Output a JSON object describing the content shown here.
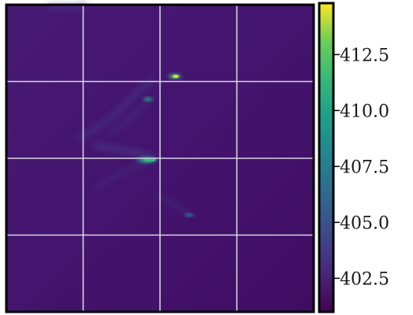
{
  "chart_data": {
    "type": "heatmap",
    "title": "",
    "xlabel": "",
    "ylabel": "",
    "grid": true,
    "grid_color": "#d9d2e6",
    "colormap": "viridis",
    "background_color": "#431068",
    "value_range": [
      401.0,
      414.8
    ],
    "colorbar": {
      "ticks": [
        412.5,
        410.0,
        407.5,
        405.0,
        402.5
      ],
      "tick_labels": [
        "412.5",
        "410.0",
        "407.5",
        "405.0",
        "402.5"
      ]
    },
    "colors": {
      "viridis_low": "#440154",
      "viridis_mid": "#21918c",
      "viridis_high": "#fde725"
    }
  }
}
